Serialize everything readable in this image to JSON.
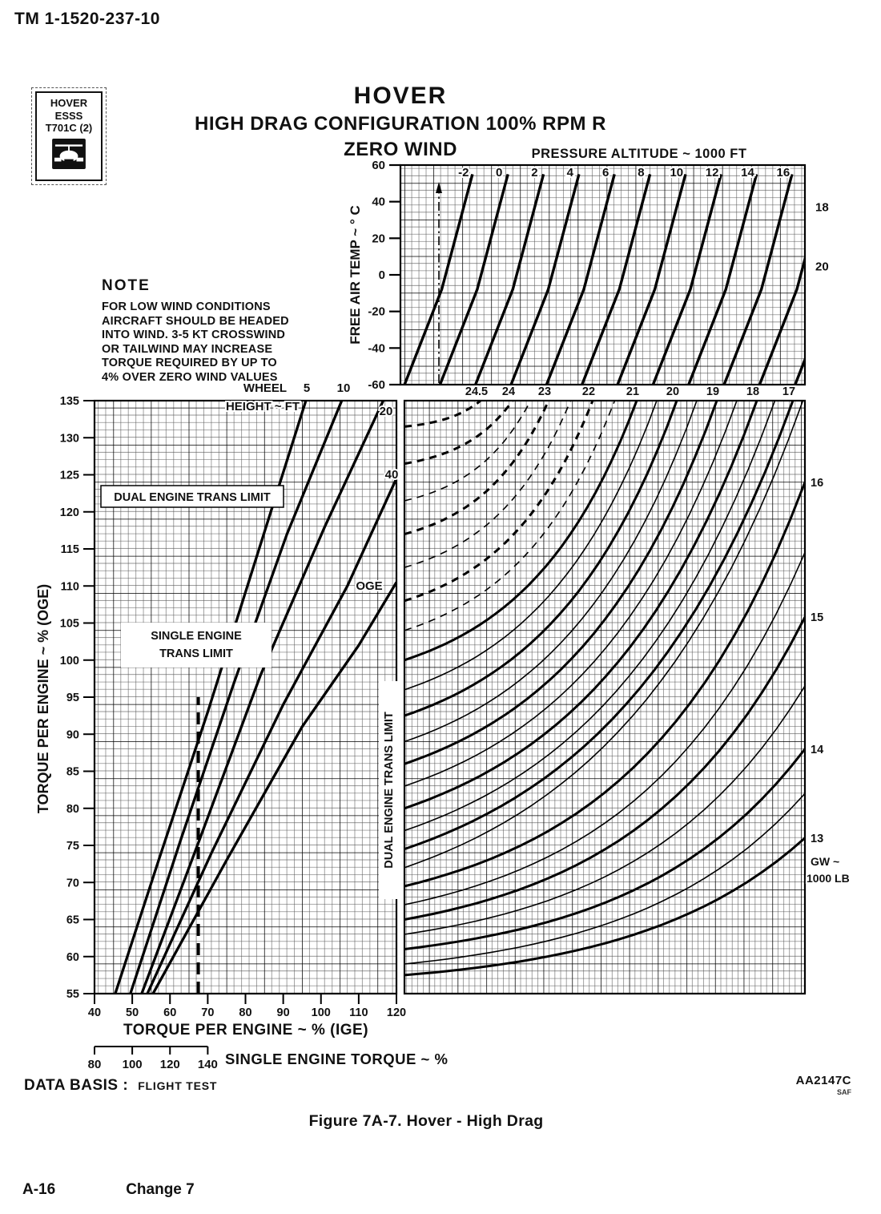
{
  "page": {
    "tm_number": "TM 1-1520-237-10",
    "data_basis_label": "DATA BASIS :",
    "data_basis_value": "FLIGHT TEST",
    "chart_ref": "AA2147C",
    "chart_ref_sub": "SAF",
    "figure_caption": "Figure 7A-7.  Hover - High Drag",
    "footer_page": "A-16",
    "footer_change": "Change 7"
  },
  "id_box": {
    "text": "HOVER\nESSS\nT701C (2)"
  },
  "title": {
    "line1": "HOVER",
    "line2": "HIGH DRAG CONFIGURATION  100% RPM R",
    "line3": "ZERO WIND"
  },
  "note": {
    "heading": "NOTE",
    "body": "FOR LOW WIND CONDITIONS\nAIRCRAFT SHOULD BE HEADED\nINTO WIND.  3-5 KT CROSSWIND\nOR TAILWIND MAY INCREASE\nTORQUE REQUIRED BY UP TO\n4% OVER ZERO WIND VALUES"
  },
  "chart_data": [
    {
      "type": "line",
      "panel": "free-air-temp-vs-pressure-altitude",
      "title": "PRESSURE ALTITUDE ~ 1000 FT",
      "ylabel": "FREE AIR TEMP ~ ° C",
      "ylim": [
        -60,
        60
      ],
      "y_ticks": [
        60,
        40,
        20,
        0,
        -20,
        -40,
        -60
      ],
      "top_label_count": 10,
      "pa_lines": [
        {
          "pa": -2,
          "x0": 1.0
        },
        {
          "pa": 0,
          "x0": 9.78
        },
        {
          "pa": 2,
          "x0": 18.56
        },
        {
          "pa": 4,
          "x0": 27.34
        },
        {
          "pa": 6,
          "x0": 36.12
        },
        {
          "pa": 8,
          "x0": 44.9
        },
        {
          "pa": 10,
          "x0": 53.68
        },
        {
          "pa": 12,
          "x0": 62.46
        },
        {
          "pa": 14,
          "x0": 71.24
        },
        {
          "pa": 16,
          "x0": 80.02
        },
        {
          "pa": 18,
          "x0": 88.8
        },
        {
          "pa": 20,
          "x0": 97.58
        }
      ],
      "right_labels": [
        {
          "text": "18",
          "fat": 37
        },
        {
          "text": "20",
          "fat": 4.5
        }
      ]
    },
    {
      "type": "line",
      "panel": "oge-vs-ige-torque",
      "xlabel": "TORQUE PER ENGINE ~ % (IGE)",
      "ylabel": "TORQUE PER ENGINE ~ % (OGE)",
      "xlim": [
        40,
        120
      ],
      "ylim": [
        55,
        135
      ],
      "x_ticks": [
        40,
        50,
        60,
        70,
        80,
        90,
        100,
        110,
        120
      ],
      "y_tick_step": 5,
      "wheel_height_header": "WHEEL\nHEIGHT ~ FT",
      "series": [
        {
          "name": "5",
          "points": [
            [
              45.5,
              55
            ],
            [
              57,
              73
            ],
            [
              70,
              93
            ],
            [
              83,
              114
            ],
            [
              96,
              135
            ]
          ]
        },
        {
          "name": "10",
          "points": [
            [
              49.5,
              55
            ],
            [
              63,
              76
            ],
            [
              77,
              97
            ],
            [
              91,
              117
            ],
            [
              105.5,
              135
            ]
          ]
        },
        {
          "name": "20",
          "points": [
            [
              52.5,
              55
            ],
            [
              68,
              76
            ],
            [
              84,
              98
            ],
            [
              101,
              118
            ],
            [
              116.5,
              135
            ]
          ]
        },
        {
          "name": "40",
          "points": [
            [
              54,
              55
            ],
            [
              71,
              74
            ],
            [
              90,
              94
            ],
            [
              107,
              110
            ],
            [
              120,
              124.5
            ]
          ]
        },
        {
          "name": "OGE",
          "points": [
            [
              55.5,
              55
            ],
            [
              75,
              73
            ],
            [
              95,
              91
            ],
            [
              110,
              102
            ],
            [
              120,
              110.5
            ]
          ]
        }
      ],
      "limit_line": {
        "x": 67.5,
        "y_from": 55,
        "y_to": 95
      },
      "labels": {
        "dual_limit": "DUAL ENGINE TRANS LIMIT",
        "single_limit": "SINGLE ENGINE\nTRANS LIMIT",
        "oge": "OGE",
        "dual_limit_vertical": "DUAL ENGINE TRANS LIMIT"
      },
      "se_axis": {
        "label": "SINGLE ENGINE TORQUE ~ %",
        "ticks": [
          80,
          100,
          120,
          140
        ]
      }
    },
    {
      "type": "line",
      "panel": "gross-weight-curves",
      "right_axis_label": "GW ~\n1000 LB",
      "ylim": [
        55,
        135
      ],
      "top_labels": [
        {
          "text": "24.5",
          "x_pct": 19
        },
        {
          "text": "24",
          "x_pct": 27
        },
        {
          "text": "23",
          "x_pct": 36
        },
        {
          "text": "22",
          "x_pct": 47
        },
        {
          "text": "21",
          "x_pct": 58
        },
        {
          "text": "20",
          "x_pct": 68
        },
        {
          "text": "19",
          "x_pct": 78
        },
        {
          "text": "18",
          "x_pct": 88
        },
        {
          "text": "17",
          "x_pct": 97
        }
      ],
      "right_labels": [
        {
          "text": "16",
          "oge": 124
        },
        {
          "text": "15",
          "oge": 105.8
        },
        {
          "text": "14",
          "oge": 88
        },
        {
          "text": "13",
          "oge": 76
        }
      ],
      "curves": [
        {
          "gw": 13,
          "start": 57.5,
          "exit": "right",
          "at": 76,
          "heavy": true,
          "dashed": false
        },
        {
          "gw": 13.5,
          "start": 59,
          "exit": "right",
          "at": 82,
          "heavy": false,
          "dashed": false
        },
        {
          "gw": 14,
          "start": 61,
          "exit": "right",
          "at": 88,
          "heavy": true,
          "dashed": false
        },
        {
          "gw": 14.5,
          "start": 63,
          "exit": "right",
          "at": 96.5,
          "heavy": false,
          "dashed": false
        },
        {
          "gw": 15,
          "start": 65,
          "exit": "right",
          "at": 105.8,
          "heavy": true,
          "dashed": false
        },
        {
          "gw": 15.5,
          "start": 67,
          "exit": "right",
          "at": 114.5,
          "heavy": false,
          "dashed": false
        },
        {
          "gw": 16,
          "start": 69.5,
          "exit": "right",
          "at": 124,
          "heavy": true,
          "dashed": false
        },
        {
          "gw": 16.5,
          "start": 72,
          "exit": "top",
          "at": 99.5,
          "heavy": false,
          "dashed": false
        },
        {
          "gw": 17,
          "start": 74.5,
          "exit": "top",
          "at": 97,
          "heavy": true,
          "dashed": false
        },
        {
          "gw": 17.5,
          "start": 77,
          "exit": "top",
          "at": 92.5,
          "heavy": false,
          "dashed": false
        },
        {
          "gw": 18,
          "start": 80,
          "exit": "top",
          "at": 88,
          "heavy": true,
          "dashed": false
        },
        {
          "gw": 18.5,
          "start": 83,
          "exit": "top",
          "at": 83,
          "heavy": false,
          "dashed": false
        },
        {
          "gw": 19,
          "start": 86,
          "exit": "top",
          "at": 78,
          "heavy": true,
          "dashed": false
        },
        {
          "gw": 19.5,
          "start": 89,
          "exit": "top",
          "at": 73,
          "heavy": false,
          "dashed": false
        },
        {
          "gw": 20,
          "start": 92.5,
          "exit": "top",
          "at": 68,
          "heavy": true,
          "dashed": false
        },
        {
          "gw": 20.5,
          "start": 96,
          "exit": "top",
          "at": 63,
          "heavy": false,
          "dashed": false
        },
        {
          "gw": 21,
          "start": 100,
          "exit": "top",
          "at": 58,
          "heavy": true,
          "dashed": false
        },
        {
          "gw": 21.5,
          "start": 104,
          "exit": "top",
          "at": 52.5,
          "heavy": false,
          "dashed": true
        },
        {
          "gw": 22,
          "start": 108,
          "exit": "top",
          "at": 47,
          "heavy": true,
          "dashed": true
        },
        {
          "gw": 22.5,
          "start": 112.5,
          "exit": "top",
          "at": 41.5,
          "heavy": false,
          "dashed": true
        },
        {
          "gw": 23,
          "start": 117,
          "exit": "top",
          "at": 36,
          "heavy": true,
          "dashed": true
        },
        {
          "gw": 23.5,
          "start": 121.5,
          "exit": "top",
          "at": 31.5,
          "heavy": false,
          "dashed": true
        },
        {
          "gw": 24,
          "start": 126.5,
          "exit": "top",
          "at": 27,
          "heavy": true,
          "dashed": true
        },
        {
          "gw": 24.5,
          "start": 131.5,
          "exit": "top",
          "at": 19,
          "heavy": true,
          "dashed": true
        }
      ]
    }
  ]
}
